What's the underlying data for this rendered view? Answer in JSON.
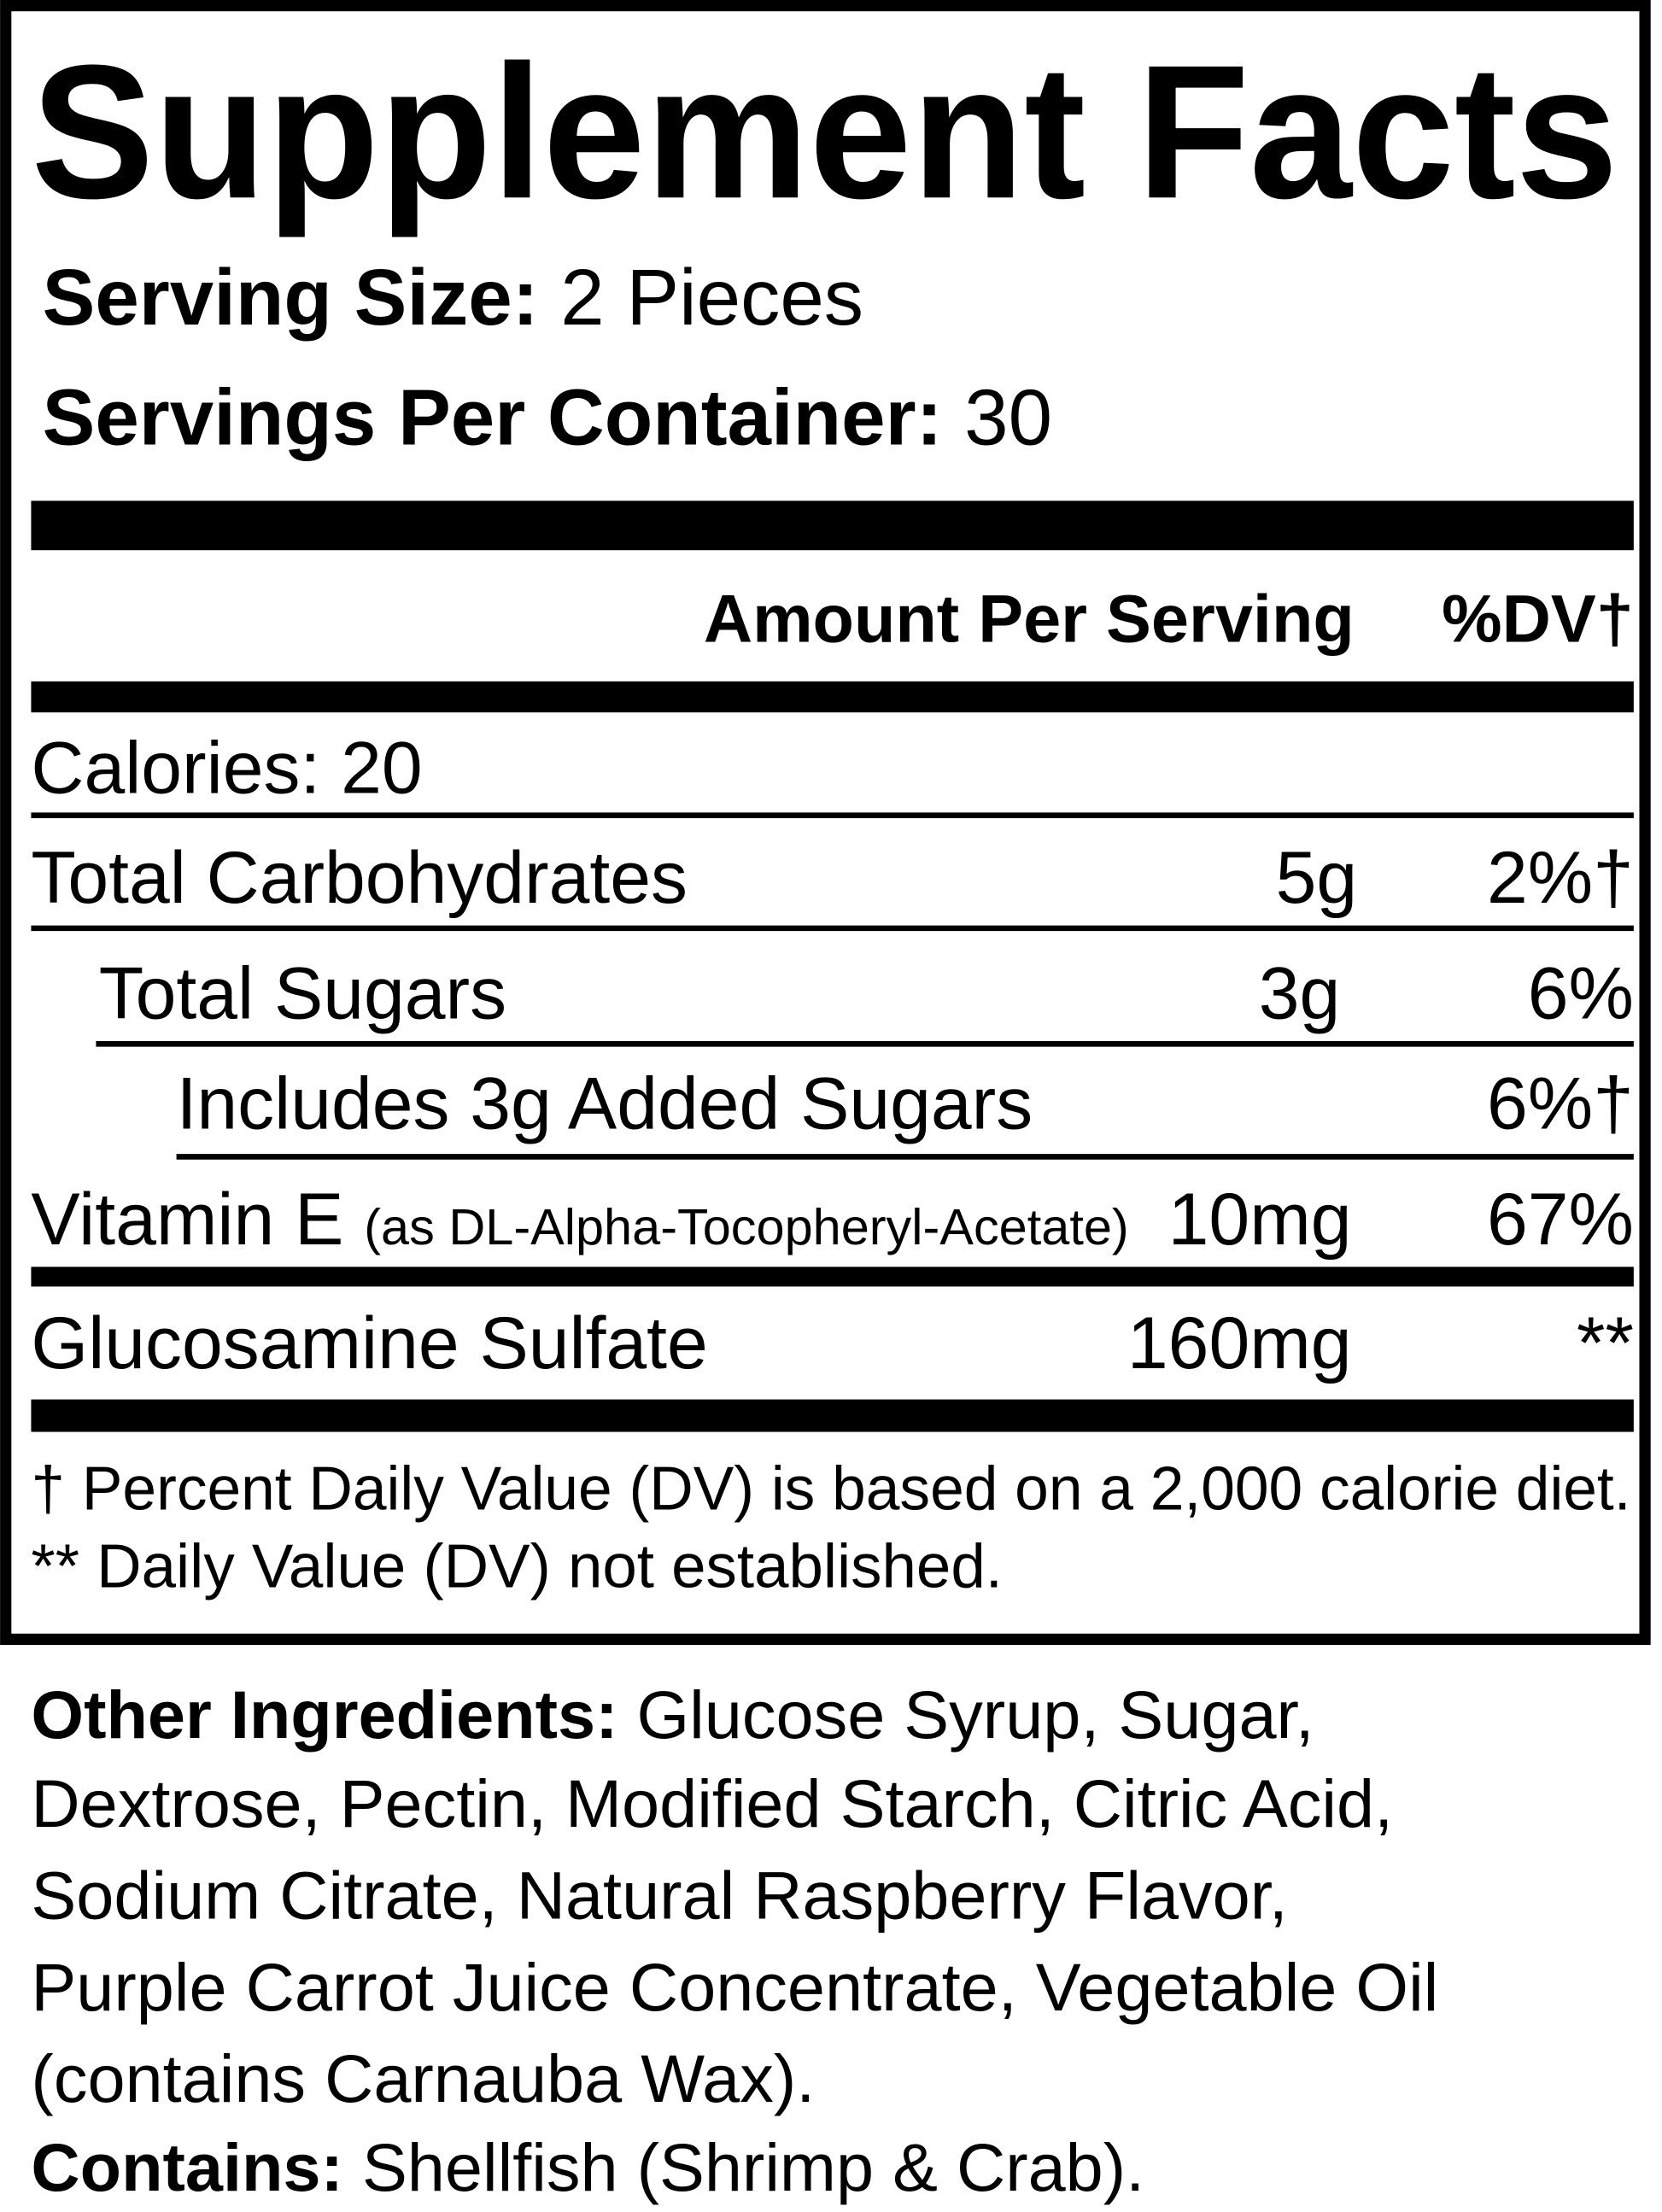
{
  "title": "Supplement Facts",
  "serving_size": {
    "label": "Serving Size:",
    "value": "2 Pieces"
  },
  "servings_per_container": {
    "label": "Servings Per Container:",
    "value": "30"
  },
  "header": {
    "amount": "Amount Per Serving",
    "dv": "%DV†"
  },
  "calories": "Calories: 20",
  "rows": [
    {
      "name": "Total Carbohydrates",
      "amount": "5g",
      "dv": "2%†"
    },
    {
      "name": "Total Sugars",
      "amount": "3g",
      "dv": "6%"
    },
    {
      "name": "Includes 3g Added Sugars",
      "dv": "6%†"
    },
    {
      "name": "Vitamin E",
      "detail": "(as DL-Alpha-Tocopheryl-Acetate)",
      "amount": "10mg",
      "dv": "67%"
    },
    {
      "name": "Glucosamine Sulfate",
      "amount": "160mg",
      "dv": "**"
    }
  ],
  "footnotes": [
    "† Percent Daily Value (DV) is based on a 2,000 calorie diet.",
    "** Daily Value (DV) not established."
  ],
  "other_ingredients": {
    "label": "Other Ingredients:",
    "lines": [
      "Glucose Syrup, Sugar,",
      "Dextrose, Pectin, Modified Starch, Citric Acid,",
      "Sodium Citrate, Natural Raspberry Flavor,",
      "Purple Carrot Juice Concentrate, Vegetable Oil",
      "(contains Carnauba Wax)."
    ]
  },
  "contains": {
    "label": "Contains:",
    "value": "Shellfish (Shrimp & Crab)."
  }
}
